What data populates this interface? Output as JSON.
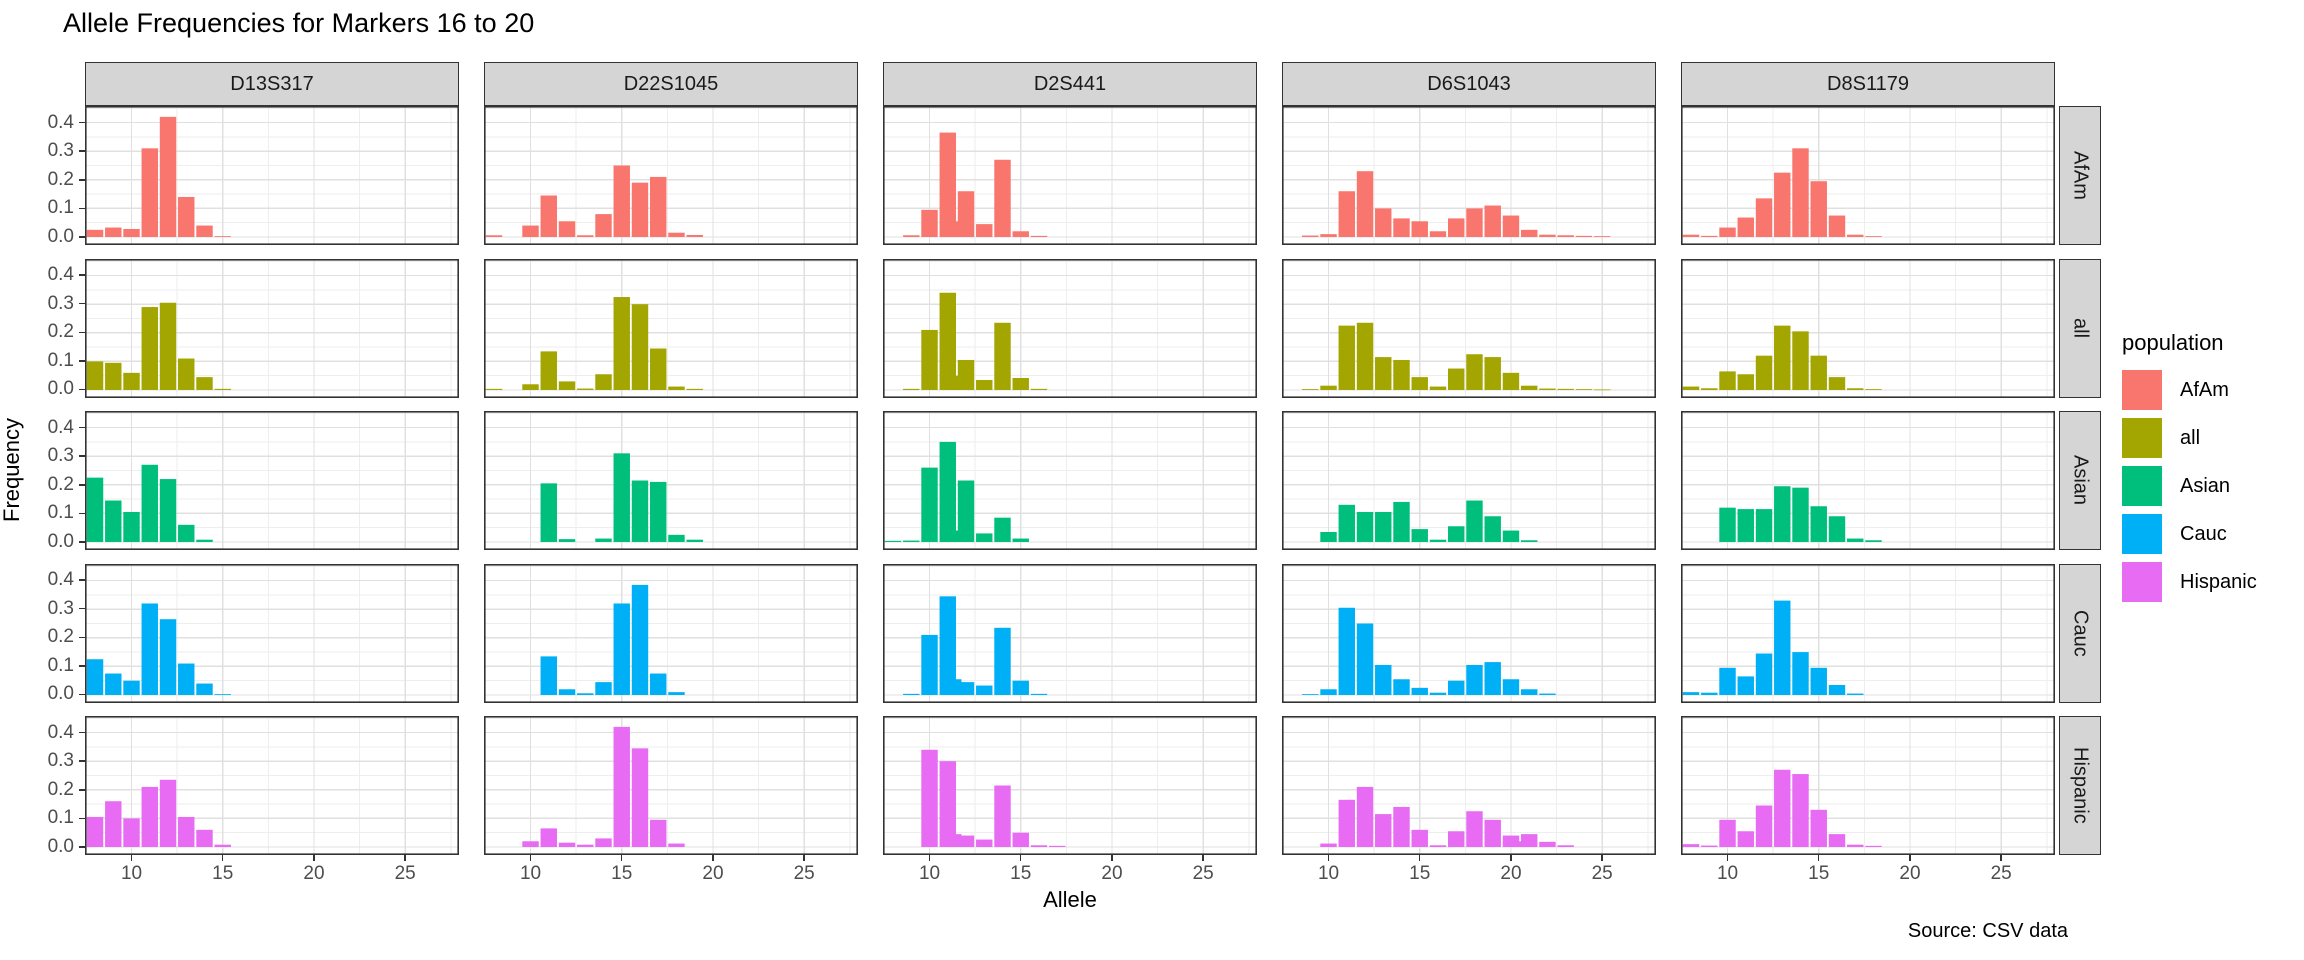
{
  "title": "Allele Frequencies for Markers 16 to 20",
  "x_axis": {
    "label": "Allele",
    "ticks": [
      10,
      15,
      20,
      25
    ],
    "domain": [
      7.45,
      27.95
    ]
  },
  "y_axis": {
    "label": "Frequency",
    "ticks": [
      0.0,
      0.1,
      0.2,
      0.3,
      0.4
    ],
    "tick_labels": [
      "0.0",
      "0.1",
      "0.2",
      "0.3",
      "0.4"
    ],
    "domain": [
      -0.028,
      0.458
    ]
  },
  "legend": {
    "title": "population",
    "items": [
      {
        "label": "AfAm",
        "color": "#F8766D"
      },
      {
        "label": "all",
        "color": "#A3A500"
      },
      {
        "label": "Asian",
        "color": "#00BF7D"
      },
      {
        "label": "Cauc",
        "color": "#00B0F6"
      },
      {
        "label": "Hispanic",
        "color": "#E76BF3"
      }
    ]
  },
  "source_note": "Source: CSV data",
  "style_colors": {
    "strip_background": "#d5d5d5",
    "panel_border": "#333333",
    "major_grid": "#e0e0e0",
    "minor_grid": "#eeeeee",
    "tick_text": "#4d4d4d"
  },
  "chart_data": {
    "type": "bar",
    "facet_columns": [
      "D13S317",
      "D22S1045",
      "D2S441",
      "D6S1043",
      "D8S1179"
    ],
    "facet_rows": [
      "AfAm",
      "all",
      "Asian",
      "Cauc",
      "Hispanic"
    ],
    "bar_width_allele_units": 0.9,
    "x_minor_gridlines": [
      7.5,
      12.5,
      17.5,
      22.5,
      27.5
    ],
    "y_minor_gridlines": [
      0.05,
      0.15,
      0.25,
      0.35,
      0.45
    ],
    "panels": [
      {
        "marker": "D13S317",
        "population": "AfAm",
        "alleles": [
          8,
          9,
          10,
          11,
          12,
          13,
          14,
          15
        ],
        "frequencies": [
          0.025,
          0.033,
          0.028,
          0.31,
          0.42,
          0.14,
          0.04,
          0.003
        ]
      },
      {
        "marker": "D22S1045",
        "population": "AfAm",
        "alleles": [
          8,
          10,
          11,
          12,
          13,
          14,
          15,
          16,
          17,
          18,
          19
        ],
        "frequencies": [
          0.006,
          0.04,
          0.145,
          0.055,
          0.006,
          0.08,
          0.25,
          0.19,
          0.21,
          0.015,
          0.007
        ]
      },
      {
        "marker": "D2S441",
        "population": "AfAm",
        "alleles": [
          9,
          10,
          11,
          11.3,
          12,
          13,
          14,
          15,
          16
        ],
        "frequencies": [
          0.006,
          0.095,
          0.365,
          0.055,
          0.16,
          0.045,
          0.27,
          0.02,
          0.004
        ]
      },
      {
        "marker": "D6S1043",
        "population": "AfAm",
        "alleles": [
          9,
          10,
          11,
          12,
          13,
          14,
          15,
          16,
          17,
          18,
          19,
          20,
          21,
          22,
          23,
          24,
          25
        ],
        "frequencies": [
          0.005,
          0.01,
          0.16,
          0.23,
          0.1,
          0.065,
          0.055,
          0.02,
          0.065,
          0.1,
          0.11,
          0.075,
          0.025,
          0.008,
          0.006,
          0.004,
          0.003
        ]
      },
      {
        "marker": "D8S1179",
        "population": "AfAm",
        "alleles": [
          8,
          9,
          10,
          11,
          12,
          13,
          14,
          15,
          16,
          17,
          18
        ],
        "frequencies": [
          0.008,
          0.004,
          0.033,
          0.068,
          0.135,
          0.225,
          0.31,
          0.195,
          0.075,
          0.008,
          0.003
        ]
      },
      {
        "marker": "D13S317",
        "population": "all",
        "alleles": [
          8,
          9,
          10,
          11,
          12,
          13,
          14,
          15
        ],
        "frequencies": [
          0.1,
          0.095,
          0.06,
          0.29,
          0.305,
          0.11,
          0.045,
          0.004
        ]
      },
      {
        "marker": "D22S1045",
        "population": "all",
        "alleles": [
          8,
          10,
          11,
          12,
          13,
          14,
          15,
          16,
          17,
          18,
          19
        ],
        "frequencies": [
          0.004,
          0.02,
          0.135,
          0.03,
          0.005,
          0.055,
          0.325,
          0.3,
          0.145,
          0.012,
          0.004
        ]
      },
      {
        "marker": "D2S441",
        "population": "all",
        "alleles": [
          9,
          10,
          11,
          11.3,
          12,
          13,
          14,
          15,
          16
        ],
        "frequencies": [
          0.004,
          0.21,
          0.34,
          0.05,
          0.105,
          0.035,
          0.235,
          0.042,
          0.004
        ]
      },
      {
        "marker": "D6S1043",
        "population": "all",
        "alleles": [
          9,
          10,
          11,
          12,
          13,
          14,
          15,
          16,
          17,
          18,
          19,
          20,
          21,
          22,
          23,
          24,
          25
        ],
        "frequencies": [
          0.003,
          0.015,
          0.225,
          0.235,
          0.115,
          0.105,
          0.045,
          0.012,
          0.075,
          0.125,
          0.115,
          0.06,
          0.015,
          0.005,
          0.004,
          0.003,
          0.002
        ]
      },
      {
        "marker": "D8S1179",
        "population": "all",
        "alleles": [
          8,
          9,
          10,
          11,
          12,
          13,
          14,
          15,
          16,
          17,
          18
        ],
        "frequencies": [
          0.012,
          0.006,
          0.065,
          0.055,
          0.12,
          0.225,
          0.205,
          0.12,
          0.045,
          0.006,
          0.003
        ]
      },
      {
        "marker": "D13S317",
        "population": "Asian",
        "alleles": [
          8,
          9,
          10,
          11,
          12,
          13,
          14
        ],
        "frequencies": [
          0.225,
          0.145,
          0.105,
          0.27,
          0.22,
          0.06,
          0.008
        ]
      },
      {
        "marker": "D22S1045",
        "population": "Asian",
        "alleles": [
          11,
          12,
          14,
          15,
          16,
          17,
          18,
          19
        ],
        "frequencies": [
          0.205,
          0.01,
          0.012,
          0.31,
          0.215,
          0.21,
          0.025,
          0.008
        ]
      },
      {
        "marker": "D2S441",
        "population": "Asian",
        "alleles": [
          8,
          9,
          10,
          11,
          11.3,
          12,
          13,
          14,
          15
        ],
        "frequencies": [
          0.004,
          0.005,
          0.26,
          0.35,
          0.04,
          0.215,
          0.03,
          0.085,
          0.012
        ]
      },
      {
        "marker": "D6S1043",
        "population": "Asian",
        "alleles": [
          10,
          11,
          12,
          13,
          14,
          15,
          16,
          17,
          18,
          19,
          20,
          21
        ],
        "frequencies": [
          0.035,
          0.13,
          0.105,
          0.105,
          0.14,
          0.045,
          0.008,
          0.055,
          0.145,
          0.09,
          0.04,
          0.006
        ]
      },
      {
        "marker": "D8S1179",
        "population": "Asian",
        "alleles": [
          10,
          11,
          12,
          13,
          14,
          15,
          16,
          17,
          18
        ],
        "frequencies": [
          0.12,
          0.115,
          0.115,
          0.195,
          0.19,
          0.125,
          0.09,
          0.012,
          0.006
        ]
      },
      {
        "marker": "D13S317",
        "population": "Cauc",
        "alleles": [
          8,
          9,
          10,
          11,
          12,
          13,
          14,
          15
        ],
        "frequencies": [
          0.125,
          0.075,
          0.05,
          0.32,
          0.265,
          0.11,
          0.04,
          0.003
        ]
      },
      {
        "marker": "D22S1045",
        "population": "Cauc",
        "alleles": [
          11,
          12,
          13,
          14,
          15,
          16,
          17,
          18
        ],
        "frequencies": [
          0.135,
          0.02,
          0.006,
          0.045,
          0.32,
          0.385,
          0.075,
          0.01
        ]
      },
      {
        "marker": "D2S441",
        "population": "Cauc",
        "alleles": [
          9,
          10,
          11,
          11.3,
          12,
          13,
          14,
          15,
          16
        ],
        "frequencies": [
          0.004,
          0.21,
          0.345,
          0.055,
          0.045,
          0.033,
          0.235,
          0.05,
          0.004
        ]
      },
      {
        "marker": "D6S1043",
        "population": "Cauc",
        "alleles": [
          9,
          10,
          11,
          12,
          13,
          14,
          15,
          16,
          17,
          18,
          19,
          20,
          21,
          22
        ],
        "frequencies": [
          0.003,
          0.02,
          0.305,
          0.25,
          0.105,
          0.055,
          0.025,
          0.008,
          0.05,
          0.105,
          0.115,
          0.055,
          0.02,
          0.005
        ]
      },
      {
        "marker": "D8S1179",
        "population": "Cauc",
        "alleles": [
          8,
          9,
          10,
          11,
          12,
          13,
          14,
          15,
          16,
          17
        ],
        "frequencies": [
          0.01,
          0.008,
          0.095,
          0.065,
          0.145,
          0.33,
          0.15,
          0.095,
          0.035,
          0.005
        ]
      },
      {
        "marker": "D13S317",
        "population": "Hispanic",
        "alleles": [
          8,
          9,
          10,
          11,
          12,
          13,
          14,
          15
        ],
        "frequencies": [
          0.105,
          0.16,
          0.1,
          0.21,
          0.235,
          0.105,
          0.06,
          0.008
        ]
      },
      {
        "marker": "D22S1045",
        "population": "Hispanic",
        "alleles": [
          10,
          11,
          12,
          13,
          14,
          15,
          16,
          17,
          18
        ],
        "frequencies": [
          0.02,
          0.065,
          0.015,
          0.008,
          0.03,
          0.42,
          0.345,
          0.095,
          0.012
        ]
      },
      {
        "marker": "D2S441",
        "population": "Hispanic",
        "alleles": [
          10,
          11,
          11.3,
          12,
          13,
          14,
          15,
          16,
          17
        ],
        "frequencies": [
          0.34,
          0.3,
          0.045,
          0.04,
          0.026,
          0.215,
          0.05,
          0.006,
          0.004
        ]
      },
      {
        "marker": "D6S1043",
        "population": "Hispanic",
        "alleles": [
          10,
          11,
          12,
          13,
          14,
          15,
          16,
          17,
          18,
          19,
          20,
          20.3,
          21,
          22,
          23
        ],
        "frequencies": [
          0.012,
          0.165,
          0.21,
          0.115,
          0.14,
          0.06,
          0.006,
          0.055,
          0.125,
          0.095,
          0.04,
          0.02,
          0.045,
          0.018,
          0.006
        ]
      },
      {
        "marker": "D8S1179",
        "population": "Hispanic",
        "alleles": [
          8,
          9,
          10,
          11,
          12,
          13,
          14,
          15,
          16,
          17,
          18
        ],
        "frequencies": [
          0.01,
          0.005,
          0.095,
          0.055,
          0.145,
          0.27,
          0.255,
          0.13,
          0.045,
          0.008,
          0.004
        ]
      }
    ]
  }
}
